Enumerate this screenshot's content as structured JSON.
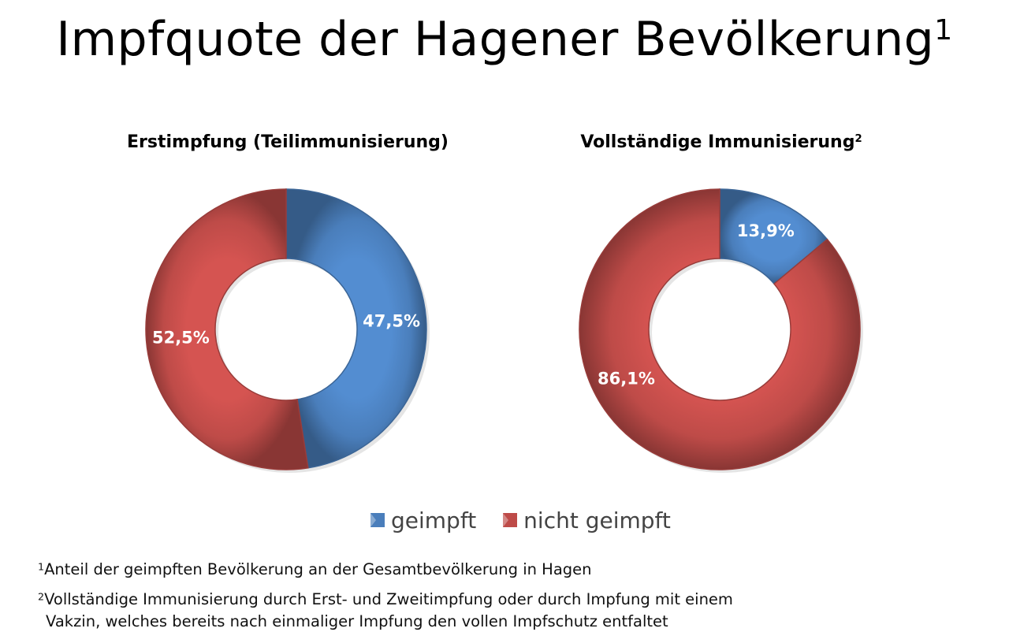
{
  "slide": {
    "title": "Impfquote der Hagener Bevölkerung",
    "title_marker": "1",
    "footnotes": [
      {
        "marker": "1",
        "text": "Anteil der geimpften Bevölkerung an der Gesamtbevölkerung in Hagen"
      },
      {
        "marker": "2",
        "text": "Vollständige Immunisierung durch Erst- und Zweitimpfung oder durch Impfung mit einem"
      },
      {
        "marker": "",
        "text": "Vakzin, welches bereits nach einmaliger Impfung den vollen Impfschutz entfaltet"
      }
    ]
  },
  "legend": {
    "placement": "bottom-center",
    "items": [
      {
        "label": "geimpft",
        "color": "#4a7ebb"
      },
      {
        "label": "nicht geimpft",
        "color": "#be4b48"
      }
    ]
  },
  "chart_data": [
    {
      "type": "pie",
      "donut": true,
      "title": "Erstimpfung (Teilimmunisierung)",
      "title_marker": "",
      "categories": [
        "geimpft",
        "nicht geimpft"
      ],
      "values": [
        47.5,
        52.5
      ],
      "labels": [
        "47,5%",
        "52,5%"
      ],
      "colors": [
        "#4a7ebb",
        "#be4b48"
      ]
    },
    {
      "type": "pie",
      "donut": true,
      "title": "Vollständige Immunisierung",
      "title_marker": "2",
      "categories": [
        "geimpft",
        "nicht geimpft"
      ],
      "values": [
        13.9,
        86.1
      ],
      "labels": [
        "13,9%",
        "86,1%"
      ],
      "colors": [
        "#4a7ebb",
        "#be4b48"
      ]
    }
  ]
}
